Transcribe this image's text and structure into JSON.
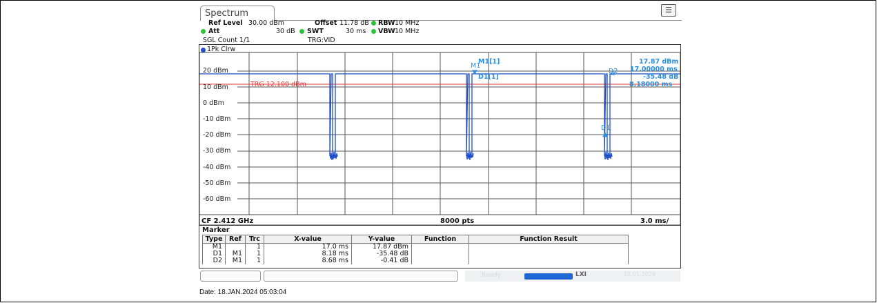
{
  "tab": {
    "label": "Spectrum"
  },
  "settings": {
    "ref_level_label": "Ref Level",
    "ref_level_value": "30.00 dBm",
    "offset_label": "Offset",
    "offset_value": "11.78 dB",
    "rbw_label": "RBW",
    "rbw_value": "10 MHz",
    "att_label": "Att",
    "att_value": "30 dB",
    "swt_label": "SWT",
    "swt_value": "30 ms",
    "vbw_label": "VBW",
    "vbw_value": "10 MHz",
    "sgl_count": "SGL Count 1/1",
    "trg": "TRG:VID"
  },
  "trace": {
    "label": "1Pk Clrw",
    "color": "#1f4fc8"
  },
  "plot": {
    "y_ticks": [
      "20 dBm",
      "10 dBm",
      "0 dBm",
      "-10 dBm",
      "-20 dBm",
      "-30 dBm",
      "-40 dBm",
      "-50 dBm",
      "-60 dBm"
    ],
    "trigger_label": "TRG 12.100 dBm",
    "trigger_color": "#e53935",
    "marker_readout": {
      "m1_title": "M1[1]",
      "m1_level": "17.87 dBm",
      "m1_time": "17.00000 ms",
      "d1_title": "D1[1]",
      "d1_level": "-35.48 dB",
      "d1_time": "8.18000 ms"
    },
    "marker_labels": {
      "m1": "M1",
      "d1": "D1",
      "d2": "D2"
    },
    "marker_color": "#2a8fe0",
    "cf": "CF 2.412 GHz",
    "points": "8000 pts",
    "scale": "3.0 ms/"
  },
  "marker_table": {
    "title": "Marker",
    "headers": [
      "Type",
      "Ref",
      "Trc",
      "X-value",
      "Y-value",
      "Function",
      "Function Result"
    ],
    "rows": [
      [
        "M1",
        "",
        "1",
        "17.0 ms",
        "17.87 dBm",
        "",
        ""
      ],
      [
        "D1",
        "M1",
        "1",
        "8.18 ms",
        "-35.48 dB",
        "",
        ""
      ],
      [
        "D2",
        "M1",
        "1",
        "8.68 ms",
        "-0.41 dB",
        "",
        ""
      ]
    ]
  },
  "status": {
    "ready": "Ready",
    "lxi": "LXI",
    "sdate": "18.01.2024"
  },
  "date_line": "Date: 18.JAN.2024  05:03:04"
}
